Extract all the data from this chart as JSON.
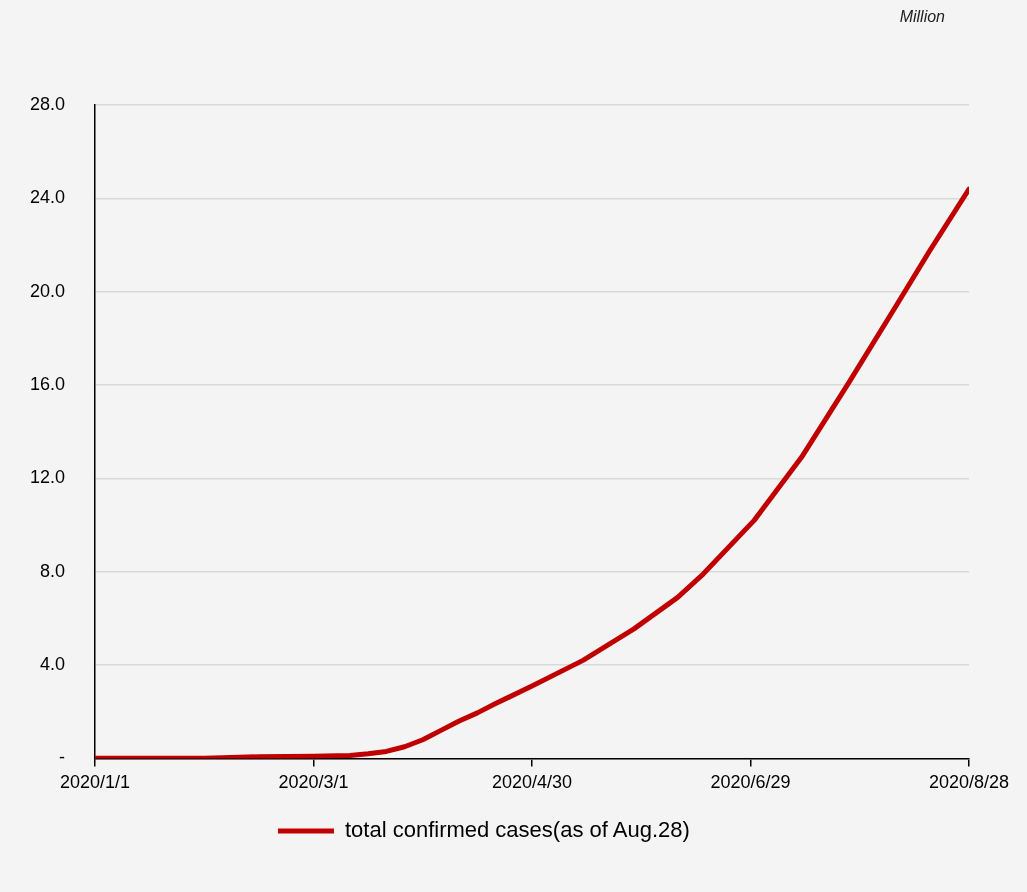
{
  "chart_data": {
    "type": "line",
    "ylabel": "Million",
    "x": [
      "2020-01-01",
      "2020-01-31",
      "2020-02-15",
      "2020-03-01",
      "2020-03-11",
      "2020-03-16",
      "2020-03-21",
      "2020-03-26",
      "2020-03-31",
      "2020-04-05",
      "2020-04-10",
      "2020-04-15",
      "2020-04-20",
      "2020-04-30",
      "2020-05-14",
      "2020-05-28",
      "2020-06-09",
      "2020-06-16",
      "2020-06-30",
      "2020-07-13",
      "2020-07-26",
      "2020-08-08",
      "2020-08-17",
      "2020-08-28"
    ],
    "series": [
      {
        "name": "total confirmed cases(as of Aug.28)",
        "color": "#c00000",
        "values": [
          0.01,
          0.01,
          0.07,
          0.09,
          0.12,
          0.2,
          0.3,
          0.5,
          0.8,
          1.2,
          1.6,
          1.95,
          2.35,
          3.1,
          4.2,
          5.55,
          6.9,
          7.9,
          10.2,
          12.9,
          16.1,
          19.4,
          21.7,
          24.4
        ]
      }
    ],
    "xlim": [
      "2020-01-01",
      "2020-08-28"
    ],
    "xticks": [
      {
        "value": "2020-01-01",
        "label": "2020/1/1"
      },
      {
        "value": "2020-03-01",
        "label": "2020/3/1"
      },
      {
        "value": "2020-04-30",
        "label": "2020/4/30"
      },
      {
        "value": "2020-06-29",
        "label": "2020/6/29"
      },
      {
        "value": "2020-08-28",
        "label": "2020/8/28"
      }
    ],
    "ylim": [
      0,
      28
    ],
    "yticks": [
      {
        "value": 0,
        "label": "-"
      },
      {
        "value": 4,
        "label": "4.0"
      },
      {
        "value": 8,
        "label": "8.0"
      },
      {
        "value": 12,
        "label": "12.0"
      },
      {
        "value": 16,
        "label": "16.0"
      },
      {
        "value": 20,
        "label": "20.0"
      },
      {
        "value": 24,
        "label": "24.0"
      },
      {
        "value": 28,
        "label": "28.0"
      }
    ],
    "grid": "y",
    "legend": "bottom",
    "marker": "none",
    "line_style": "solid"
  }
}
